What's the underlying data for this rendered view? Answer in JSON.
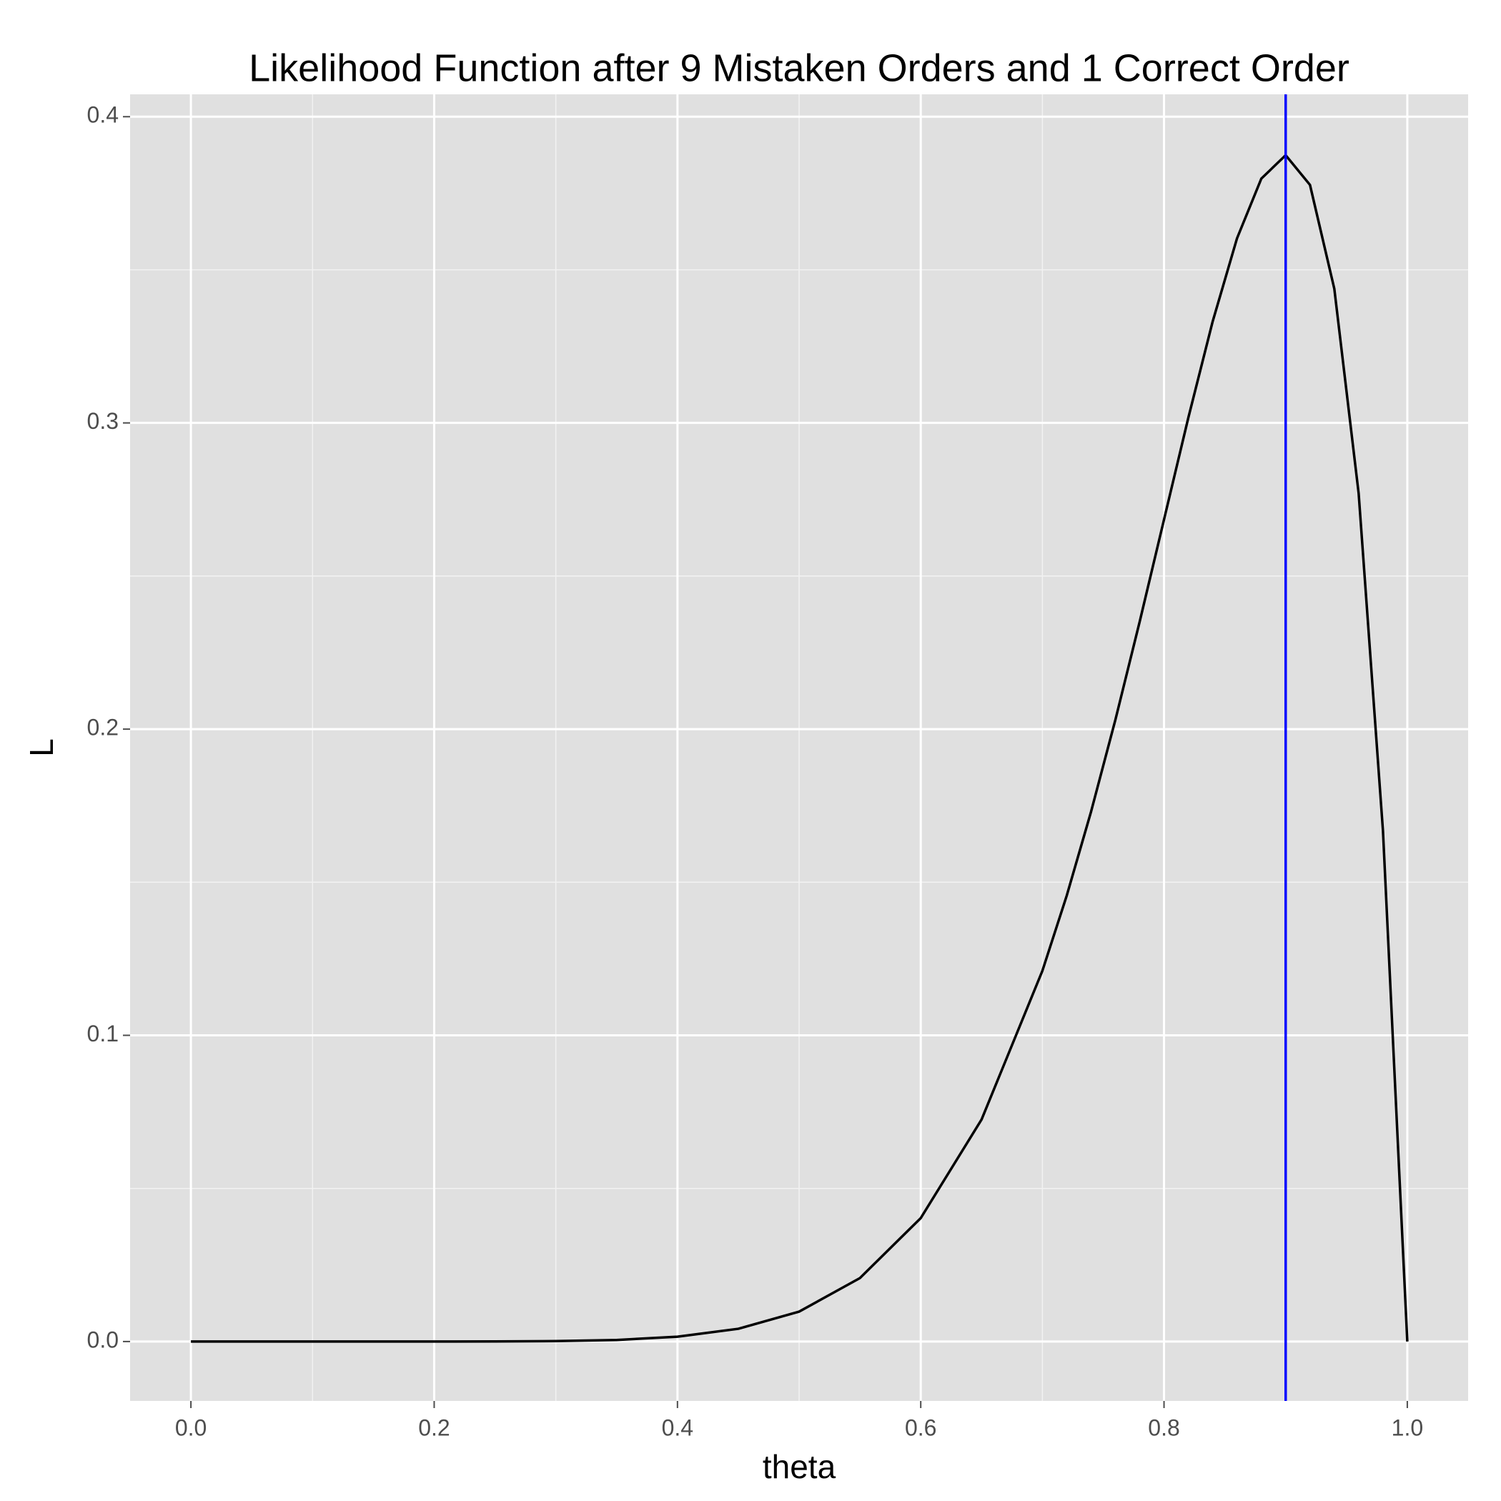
{
  "chart_data": {
    "type": "line",
    "title": "Likelihood Function after 9 Mistaken Orders and 1 Correct Order",
    "x_label": "theta",
    "y_label": "L",
    "x": [
      0,
      0.05,
      0.1,
      0.15,
      0.2,
      0.25,
      0.3,
      0.35,
      0.4,
      0.45,
      0.5,
      0.55,
      0.6,
      0.65,
      0.7,
      0.72,
      0.74,
      0.76,
      0.78,
      0.8,
      0.82,
      0.84,
      0.86,
      0.88,
      0.9,
      0.92,
      0.94,
      0.96,
      0.98,
      1
    ],
    "series": [
      {
        "color": "#000000",
        "values": [
          0,
          0,
          9e-09,
          3.27e-07,
          4.1e-06,
          2.86e-05,
          0.0001378,
          0.0005123,
          0.0015729,
          0.0041617,
          0.0097656,
          0.020724,
          0.040311,
          0.072492,
          0.12106,
          0.1456,
          0.17301,
          0.20302,
          0.23511,
          0.26844,
          0.30172,
          0.33314,
          0.36026,
          0.37978,
          0.38742,
          0.37773,
          0.3438,
          0.27701,
          0.16675,
          0
        ]
      }
    ],
    "vline": {
      "x": 0.9,
      "color": "#0000ff"
    },
    "xlim": [
      -0.05,
      1.05
    ],
    "ylim": [
      -0.0194,
      0.4073
    ],
    "xticks": [
      {
        "value": 0,
        "label": "0.0"
      },
      0.2,
      0.4,
      0.6,
      0.8,
      {
        "value": 1,
        "label": "1.0"
      }
    ],
    "yticks": [
      {
        "value": 0,
        "label": "0.0"
      },
      0.1,
      0.2,
      0.3,
      0.4
    ],
    "grid": true
  }
}
